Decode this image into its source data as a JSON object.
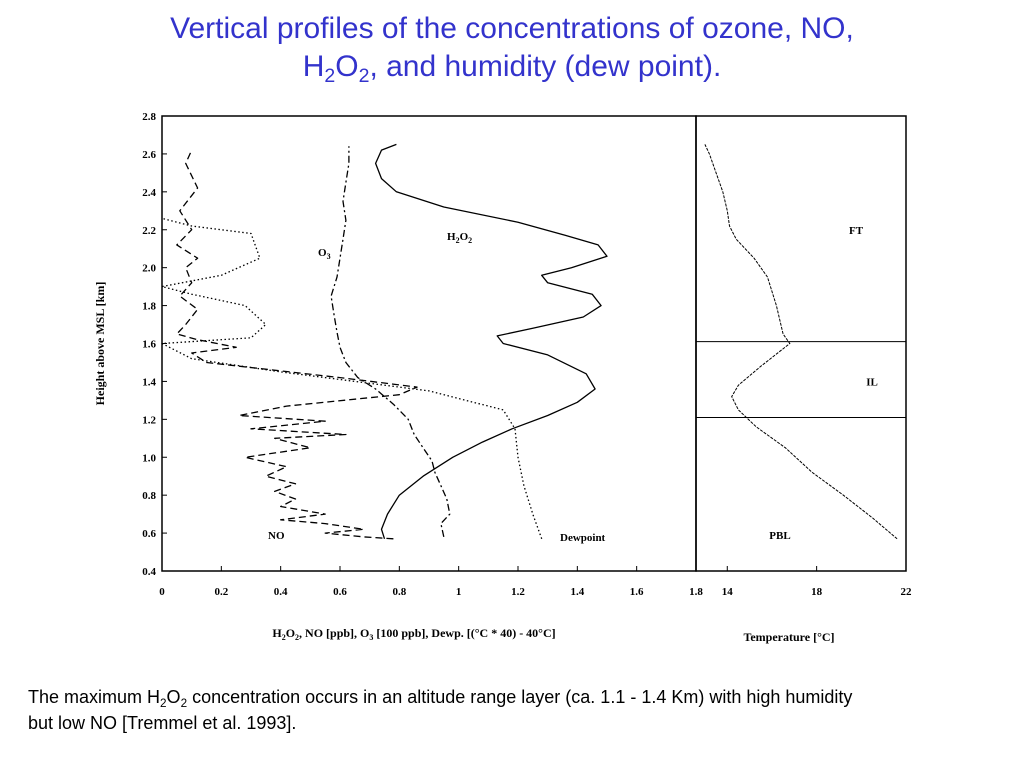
{
  "title": {
    "line1": "Vertical profiles of the concentrations of ozone, NO,",
    "line2_prefix": "H",
    "line2_sub1": "2",
    "line2_mid": "O",
    "line2_sub2": "2",
    "line2_rest": ", and humidity (dew point)."
  },
  "caption": {
    "part1": "The maximum H",
    "sub1": "2",
    "part2": "O",
    "sub2": "2",
    "part3": " concentration occurs in an altitude range layer (ca. 1.1 - 1.4 Km) with high humidity but low NO [Tremmel et al. 1993]."
  },
  "colors": {
    "title": "#3333cc",
    "ink": "#000000"
  },
  "chart_data": [
    {
      "type": "line",
      "ylabel": "Height above MSL [km]",
      "xlabel": "H2O2, NO [ppb], O3 [100 ppb], Dewp. [(°C * 40) - 40°C]",
      "xlim": [
        0,
        1.8
      ],
      "ylim": [
        0.4,
        2.8
      ],
      "x_ticks": [
        "0",
        "0.2",
        "0.4",
        "0.6",
        "0.8",
        "1",
        "1.2",
        "1.4",
        "1.6",
        "1.8"
      ],
      "y_ticks": [
        "0.4",
        "0.6",
        "0.8",
        "1.0",
        "1.2",
        "1.4",
        "1.6",
        "1.8",
        "2.0",
        "2.2",
        "2.4",
        "2.6",
        "2.8"
      ],
      "series": [
        {
          "name": "H2O2",
          "style": "solid",
          "points": [
            [
              0.75,
              0.57
            ],
            [
              0.74,
              0.62
            ],
            [
              0.76,
              0.7
            ],
            [
              0.8,
              0.8
            ],
            [
              0.88,
              0.9
            ],
            [
              0.98,
              1.0
            ],
            [
              1.08,
              1.08
            ],
            [
              1.18,
              1.15
            ],
            [
              1.3,
              1.22
            ],
            [
              1.4,
              1.29
            ],
            [
              1.46,
              1.36
            ],
            [
              1.43,
              1.44
            ],
            [
              1.3,
              1.54
            ],
            [
              1.15,
              1.6
            ],
            [
              1.13,
              1.64
            ],
            [
              1.25,
              1.68
            ],
            [
              1.42,
              1.74
            ],
            [
              1.48,
              1.8
            ],
            [
              1.45,
              1.86
            ],
            [
              1.3,
              1.92
            ],
            [
              1.28,
              1.96
            ],
            [
              1.38,
              2.0
            ],
            [
              1.5,
              2.06
            ],
            [
              1.47,
              2.12
            ],
            [
              1.36,
              2.17
            ],
            [
              1.2,
              2.24
            ],
            [
              0.95,
              2.32
            ],
            [
              0.79,
              2.4
            ],
            [
              0.74,
              2.47
            ],
            [
              0.72,
              2.55
            ],
            [
              0.74,
              2.62
            ],
            [
              0.79,
              2.65
            ]
          ]
        },
        {
          "name": "O3",
          "style": "dash-dot",
          "points": [
            [
              0.95,
              0.58
            ],
            [
              0.94,
              0.65
            ],
            [
              0.97,
              0.7
            ],
            [
              0.96,
              0.78
            ],
            [
              0.94,
              0.85
            ],
            [
              0.92,
              0.92
            ],
            [
              0.91,
              0.98
            ],
            [
              0.88,
              1.05
            ],
            [
              0.85,
              1.12
            ],
            [
              0.83,
              1.2
            ],
            [
              0.78,
              1.28
            ],
            [
              0.72,
              1.36
            ],
            [
              0.66,
              1.42
            ],
            [
              0.62,
              1.5
            ],
            [
              0.6,
              1.58
            ],
            [
              0.59,
              1.66
            ],
            [
              0.58,
              1.75
            ],
            [
              0.57,
              1.85
            ],
            [
              0.59,
              1.95
            ],
            [
              0.6,
              2.05
            ],
            [
              0.61,
              2.15
            ],
            [
              0.62,
              2.25
            ],
            [
              0.61,
              2.35
            ],
            [
              0.62,
              2.45
            ],
            [
              0.63,
              2.55
            ],
            [
              0.63,
              2.64
            ]
          ]
        },
        {
          "name": "NO",
          "style": "dashed",
          "points": [
            [
              0.78,
              0.57
            ],
            [
              0.68,
              0.58
            ],
            [
              0.55,
              0.6
            ],
            [
              0.68,
              0.62
            ],
            [
              0.55,
              0.65
            ],
            [
              0.4,
              0.67
            ],
            [
              0.55,
              0.7
            ],
            [
              0.4,
              0.74
            ],
            [
              0.45,
              0.78
            ],
            [
              0.38,
              0.82
            ],
            [
              0.45,
              0.86
            ],
            [
              0.35,
              0.9
            ],
            [
              0.42,
              0.95
            ],
            [
              0.28,
              1.0
            ],
            [
              0.5,
              1.05
            ],
            [
              0.38,
              1.1
            ],
            [
              0.62,
              1.12
            ],
            [
              0.3,
              1.15
            ],
            [
              0.55,
              1.19
            ],
            [
              0.26,
              1.22
            ],
            [
              0.42,
              1.27
            ],
            [
              0.8,
              1.33
            ],
            [
              0.86,
              1.37
            ],
            [
              0.6,
              1.42
            ],
            [
              0.15,
              1.5
            ],
            [
              0.1,
              1.55
            ],
            [
              0.25,
              1.58
            ],
            [
              0.12,
              1.62
            ],
            [
              0.05,
              1.65
            ],
            [
              0.08,
              1.7
            ],
            [
              0.12,
              1.78
            ],
            [
              0.06,
              1.85
            ],
            [
              0.1,
              1.92
            ],
            [
              0.08,
              2.0
            ],
            [
              0.12,
              2.05
            ],
            [
              0.05,
              2.12
            ],
            [
              0.1,
              2.2
            ],
            [
              0.06,
              2.3
            ],
            [
              0.12,
              2.42
            ],
            [
              0.08,
              2.55
            ],
            [
              0.1,
              2.62
            ]
          ]
        },
        {
          "name": "Dewpoint",
          "style": "dotted",
          "points": [
            [
              1.28,
              0.57
            ],
            [
              1.25,
              0.7
            ],
            [
              1.22,
              0.85
            ],
            [
              1.2,
              1.0
            ],
            [
              1.19,
              1.15
            ],
            [
              1.15,
              1.25
            ],
            [
              0.9,
              1.35
            ],
            [
              0.4,
              1.45
            ],
            [
              0.1,
              1.52
            ],
            [
              0.0,
              1.6
            ],
            [
              0.3,
              1.63
            ],
            [
              0.35,
              1.7
            ],
            [
              0.28,
              1.8
            ],
            [
              0.1,
              1.86
            ],
            [
              0.0,
              1.9
            ],
            [
              0.2,
              1.96
            ],
            [
              0.33,
              2.05
            ],
            [
              0.3,
              2.18
            ],
            [
              0.1,
              2.22
            ],
            [
              0.0,
              2.26
            ]
          ]
        }
      ],
      "annotations": [
        "O3",
        "H2O2",
        "NO",
        "Dewpoint"
      ]
    },
    {
      "type": "line",
      "xlabel": "Temperature [°C]",
      "xlim": [
        12.6,
        22
      ],
      "ylim": [
        0.4,
        2.8
      ],
      "x_ticks": [
        "14",
        "18",
        "22"
      ],
      "series": [
        {
          "name": "Temperature",
          "style": "solid",
          "points": [
            [
              21.6,
              0.57
            ],
            [
              20.5,
              0.68
            ],
            [
              19.2,
              0.8
            ],
            [
              17.8,
              0.92
            ],
            [
              16.6,
              1.05
            ],
            [
              15.3,
              1.16
            ],
            [
              14.5,
              1.25
            ],
            [
              14.2,
              1.32
            ],
            [
              14.5,
              1.38
            ],
            [
              15.5,
              1.48
            ],
            [
              16.8,
              1.6
            ],
            [
              16.5,
              1.65
            ],
            [
              16.2,
              1.8
            ],
            [
              15.8,
              1.95
            ],
            [
              15.2,
              2.05
            ],
            [
              14.4,
              2.15
            ],
            [
              14.1,
              2.22
            ],
            [
              14.0,
              2.3
            ],
            [
              13.8,
              2.4
            ],
            [
              13.5,
              2.5
            ],
            [
              13.2,
              2.6
            ],
            [
              13.0,
              2.65
            ]
          ]
        }
      ],
      "layers": [
        {
          "name": "FT",
          "label_y": 2.2
        },
        {
          "name": "IL",
          "label_y": 1.4,
          "top": 1.61,
          "bottom": 1.21
        },
        {
          "name": "PBL",
          "label_y": 0.59
        }
      ]
    }
  ]
}
